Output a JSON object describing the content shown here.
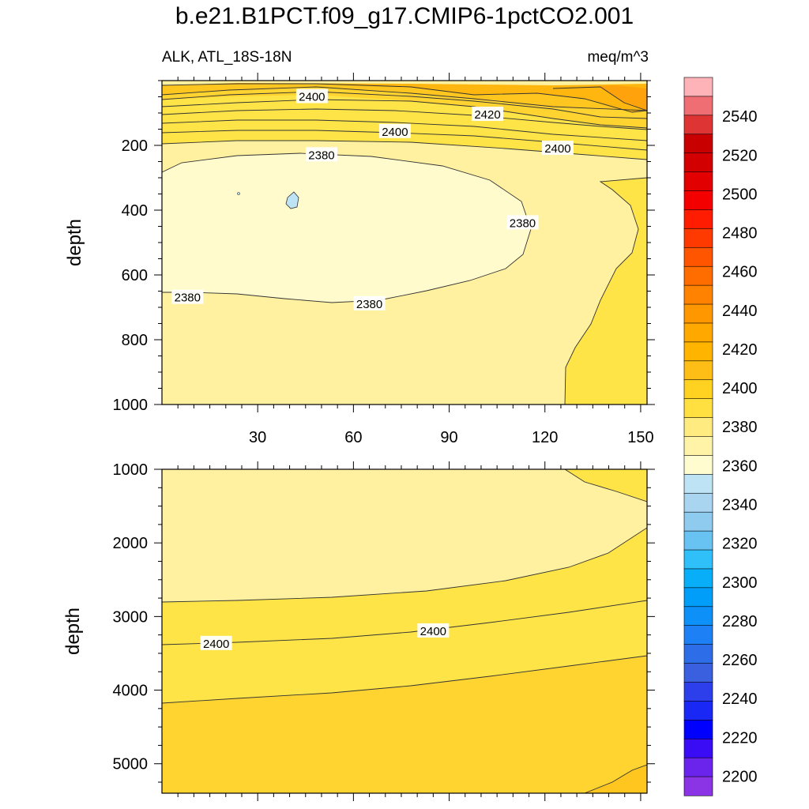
{
  "chart_data": {
    "type": "heatmap",
    "title": "b.e21.B1PCT.f09_g17.CMIP6-1pctCO2.001",
    "left_subtitle": "ALK, ATL_18S-18N",
    "right_subtitle": "meq/m^3",
    "ylabel": "depth",
    "x_ticks": [
      "30",
      "60",
      "90",
      "120",
      "150"
    ],
    "x_tick_values": [
      30,
      60,
      90,
      120,
      150
    ],
    "xlim": [
      0,
      152
    ],
    "upper_panel": {
      "ylim": [
        0,
        1000
      ],
      "y_ticks": [
        "200",
        "400",
        "600",
        "800",
        "1000"
      ],
      "y_tick_values": [
        200,
        400,
        600,
        800,
        1000
      ],
      "contour_labels": [
        {
          "text": "2400",
          "x": 47,
          "depth": 50
        },
        {
          "text": "2420",
          "x": 102,
          "depth": 105
        },
        {
          "text": "2400",
          "x": 73,
          "depth": 158
        },
        {
          "text": "2400",
          "x": 124,
          "depth": 210
        },
        {
          "text": "2380",
          "x": 50,
          "depth": 230
        },
        {
          "text": "2380",
          "x": 113,
          "depth": 440
        },
        {
          "text": "2380",
          "x": 8,
          "depth": 670
        },
        {
          "text": "2380",
          "x": 65,
          "depth": 690
        }
      ]
    },
    "lower_panel": {
      "ylim": [
        1000,
        5400
      ],
      "y_ticks": [
        "1000",
        "2000",
        "3000",
        "4000",
        "5000"
      ],
      "y_tick_values": [
        1000,
        2000,
        3000,
        4000,
        5000
      ],
      "contour_labels": [
        {
          "text": "2400",
          "x": 17,
          "depth": 3370
        },
        {
          "text": "2400",
          "x": 85,
          "depth": 3200
        }
      ]
    },
    "colorbar": {
      "labels": [
        "2540",
        "2520",
        "2500",
        "2480",
        "2460",
        "2440",
        "2420",
        "2400",
        "2380",
        "2360",
        "2340",
        "2320",
        "2300",
        "2280",
        "2260",
        "2240",
        "2220",
        "2200"
      ],
      "label_values": [
        2540,
        2520,
        2500,
        2480,
        2460,
        2440,
        2420,
        2400,
        2380,
        2360,
        2340,
        2320,
        2300,
        2280,
        2260,
        2240,
        2220,
        2200
      ],
      "colors": [
        "#fdb3b8",
        "#ee6e74",
        "#de3433",
        "#c80000",
        "#d20000",
        "#e20000",
        "#f50000",
        "#ff1c00",
        "#ff3a00",
        "#ff5500",
        "#ff6d00",
        "#ff8200",
        "#ff9800",
        "#ffa800",
        "#ffb400",
        "#ffbe15",
        "#ffd120",
        "#ffe040",
        "#ffeb80",
        "#fff3a8",
        "#fffcd0",
        "#bde3f5",
        "#a9d5f0",
        "#8ecbee",
        "#68c2f2",
        "#2fbff9",
        "#08aef7",
        "#009ef8",
        "#0d90f8",
        "#1e80f5",
        "#2d6ee8",
        "#3a60e0",
        "#2c3fea",
        "#1928f5",
        "#0000ff",
        "#3a0cf5",
        "#6a24ec",
        "#8a34e6"
      ]
    },
    "colors": {
      "level_2380_2390": "#fffbcd",
      "level_2390_2400": "#fff19f",
      "level_2400_2410": "#ffe447",
      "level_2410_2420": "#ffd330",
      "level_2420_2430": "#ffc61f",
      "level_2430_2440": "#ffb60f",
      "level_2440_2450": "#ffa20b",
      "level_2350_2360": "#bde3f5"
    }
  }
}
